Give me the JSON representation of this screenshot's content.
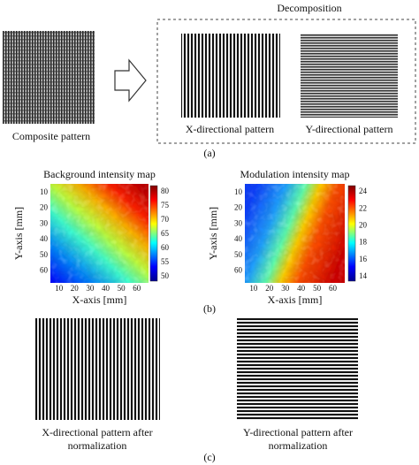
{
  "panel_a": {
    "heading": "Decomposition",
    "images": [
      {
        "label": "Composite pattern"
      },
      {
        "label": "X-directional pattern"
      },
      {
        "label": "Y-directional pattern"
      }
    ],
    "caption": "(a)"
  },
  "panel_b": {
    "maps": [
      {
        "title": "Background intensity map",
        "x_label": "X-axis [mm]",
        "y_label": "Y-axis [mm]",
        "x_ticks": [
          10,
          20,
          30,
          40,
          50,
          60
        ],
        "y_ticks": [
          10,
          20,
          30,
          40,
          50,
          60
        ],
        "colorbar_ticks": [
          80,
          75,
          70,
          65,
          60,
          55,
          50
        ]
      },
      {
        "title": "Modulation intensity map",
        "x_label": "X-axis [mm]",
        "y_label": "Y-axis [mm]",
        "x_ticks": [
          10,
          20,
          30,
          40,
          50,
          60
        ],
        "y_ticks": [
          10,
          20,
          30,
          40,
          50,
          60
        ],
        "colorbar_ticks": [
          24,
          22,
          20,
          18,
          16,
          14
        ]
      }
    ],
    "caption": "(b)"
  },
  "panel_c": {
    "images": [
      {
        "label_lines": [
          "X-directional pattern after",
          "normalization"
        ]
      },
      {
        "label_lines": [
          "Y-directional pattern after",
          "normalization"
        ]
      }
    ],
    "caption": "(c)"
  }
}
